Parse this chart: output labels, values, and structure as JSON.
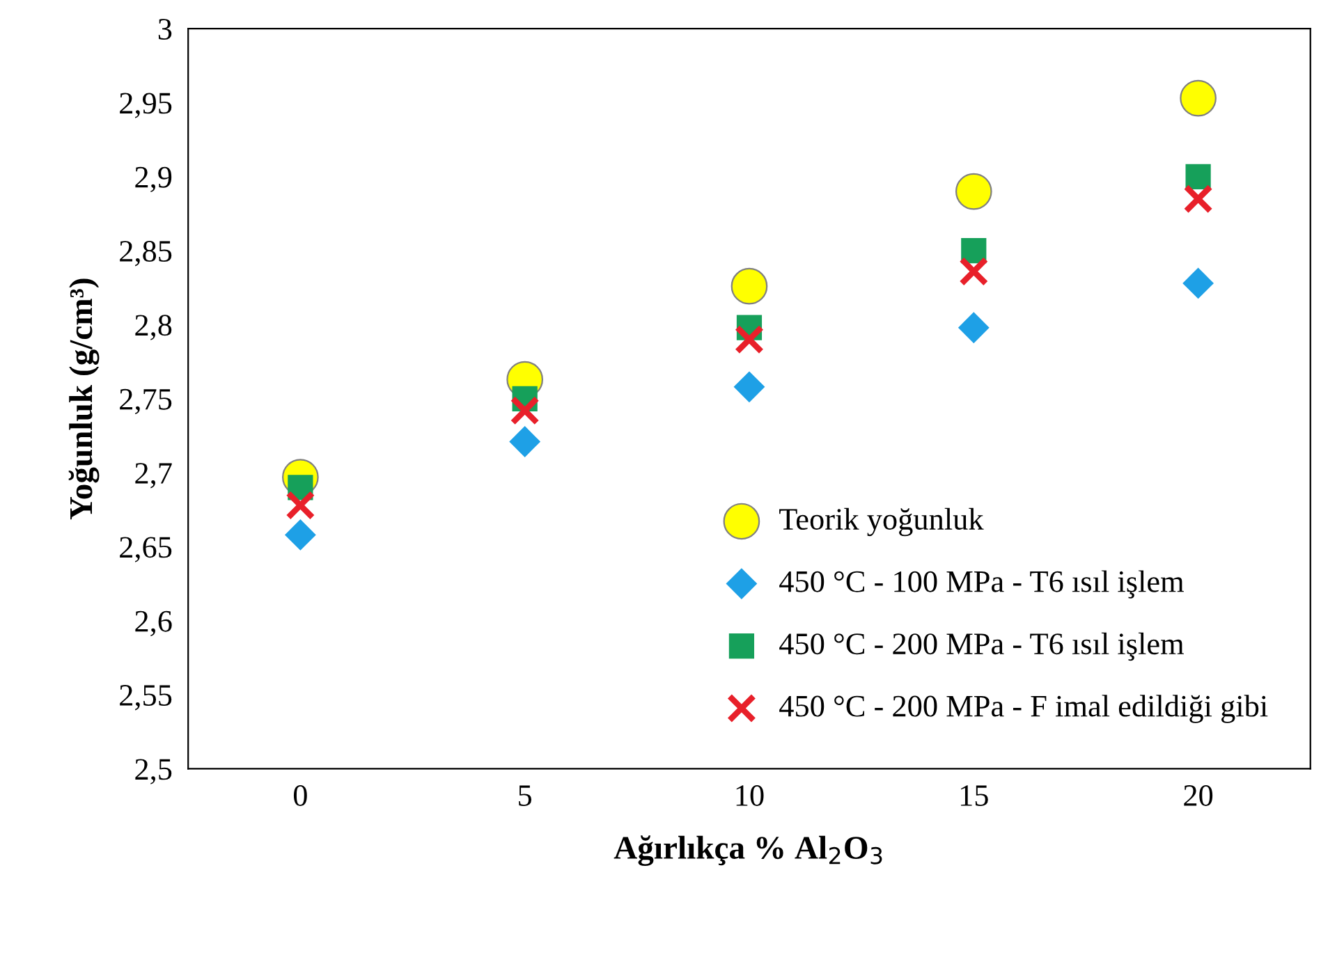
{
  "chart_data": {
    "type": "scatter",
    "xlabel": "Ağırlıkça % Al$_{2}$O$_{3}$",
    "ylabel": "Yoğunluk (g/cm³)",
    "x": [
      0,
      5,
      10,
      15,
      20
    ],
    "series": [
      {
        "name": "Teorik yoğunluk",
        "color": "#ffff00",
        "marker": "circle",
        "values": [
          2.697,
          2.763,
          2.826,
          2.89,
          2.953
        ]
      },
      {
        "name": "450 °C - 100 MPa - T6 ısıl işlem",
        "color": "#1ea0e6",
        "marker": "diamond",
        "values": [
          2.658,
          2.721,
          2.758,
          2.798,
          2.828
        ]
      },
      {
        "name": "450 °C - 200 MPa - T6 ısıl işlem",
        "color": "#16a05a",
        "marker": "square",
        "values": [
          2.69,
          2.75,
          2.798,
          2.85,
          2.9
        ]
      },
      {
        "name": "450 °C - 200 MPa - F imal edildiği gibi",
        "color": "#e8202a",
        "marker": "cross",
        "values": [
          2.678,
          2.742,
          2.79,
          2.836,
          2.885
        ]
      }
    ],
    "xlim": [
      -2.5,
      22.5
    ],
    "xticks": [
      0,
      5,
      10,
      15,
      20
    ],
    "ylim": [
      2.5,
      3
    ],
    "yticks": [
      {
        "value": 2.5,
        "label": "2,5"
      },
      {
        "value": 2.55,
        "label": "2,55"
      },
      {
        "value": 2.6,
        "label": "2,6"
      },
      {
        "value": 2.65,
        "label": "2,65"
      },
      {
        "value": 2.7,
        "label": "2,7"
      },
      {
        "value": 2.75,
        "label": "2,75"
      },
      {
        "value": 2.8,
        "label": "2,8"
      },
      {
        "value": 2.85,
        "label": "2,85"
      },
      {
        "value": 2.9,
        "label": "2,9"
      },
      {
        "value": 2.95,
        "label": "2,95"
      },
      {
        "value": 3,
        "label": "3"
      }
    ],
    "grid": false,
    "legend": "bottom right"
  }
}
